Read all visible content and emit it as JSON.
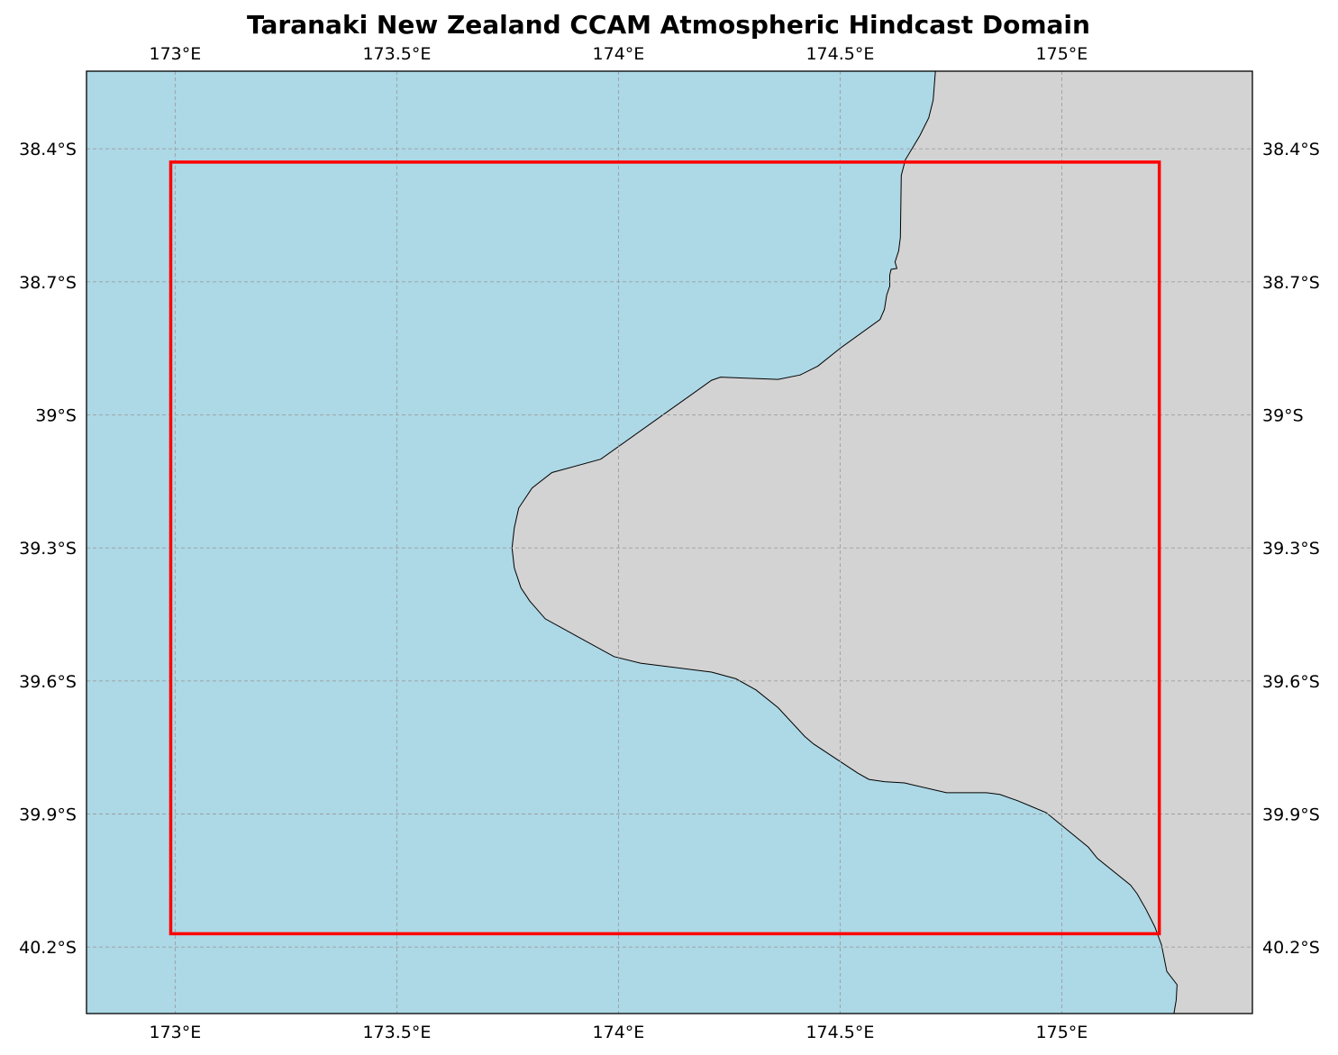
{
  "title": "Taranaki New Zealand CCAM Atmospheric Hindcast Domain",
  "map": {
    "projection": "PlateCarree",
    "extent": {
      "lon": [
        172.8,
        175.43
      ],
      "lat": [
        -40.35,
        -38.225
      ]
    },
    "colors": {
      "ocean": "#add8e6",
      "land": "#d3d3d3",
      "coastline": "#000000",
      "gridlines": "#999999",
      "domain_box": "#ff0000"
    },
    "gridlines": true,
    "lon_ticks": [
      {
        "value": 173.0,
        "label": "173°E"
      },
      {
        "value": 173.5,
        "label": "173.5°E"
      },
      {
        "value": 174.0,
        "label": "174°E"
      },
      {
        "value": 174.5,
        "label": "174.5°E"
      },
      {
        "value": 175.0,
        "label": "175°E"
      }
    ],
    "lat_ticks": [
      {
        "value": -38.4,
        "label": "38.4°S"
      },
      {
        "value": -38.7,
        "label": "38.7°S"
      },
      {
        "value": -39.0,
        "label": "39°S"
      },
      {
        "value": -39.3,
        "label": "39.3°S"
      },
      {
        "value": -39.6,
        "label": "39.6°S"
      },
      {
        "value": -39.9,
        "label": "39.9°S"
      },
      {
        "value": -40.2,
        "label": "40.2°S"
      }
    ],
    "domain_box": {
      "lon": [
        172.99,
        175.22
      ],
      "lat": [
        -40.17,
        -38.43
      ]
    },
    "coastline": [
      [
        174.715,
        -38.225
      ],
      [
        174.71,
        -38.29
      ],
      [
        174.7,
        -38.33
      ],
      [
        174.68,
        -38.37
      ],
      [
        174.647,
        -38.425
      ],
      [
        174.638,
        -38.46
      ],
      [
        174.636,
        -38.6
      ],
      [
        174.632,
        -38.63
      ],
      [
        174.624,
        -38.655
      ],
      [
        174.628,
        -38.67
      ],
      [
        174.615,
        -38.672
      ],
      [
        174.612,
        -38.685
      ],
      [
        174.612,
        -38.71
      ],
      [
        174.605,
        -38.73
      ],
      [
        174.6,
        -38.762
      ],
      [
        174.59,
        -38.785
      ],
      [
        174.5,
        -38.85
      ],
      [
        174.45,
        -38.89
      ],
      [
        174.41,
        -38.91
      ],
      [
        174.36,
        -38.92
      ],
      [
        174.23,
        -38.915
      ],
      [
        174.21,
        -38.922
      ],
      [
        173.96,
        -39.1
      ],
      [
        173.85,
        -39.13
      ],
      [
        173.805,
        -39.165
      ],
      [
        173.775,
        -39.21
      ],
      [
        173.765,
        -39.255
      ],
      [
        173.76,
        -39.3
      ],
      [
        173.765,
        -39.345
      ],
      [
        173.78,
        -39.39
      ],
      [
        173.8,
        -39.42
      ],
      [
        173.835,
        -39.46
      ],
      [
        173.99,
        -39.545
      ],
      [
        174.05,
        -39.56
      ],
      [
        174.21,
        -39.58
      ],
      [
        174.265,
        -39.595
      ],
      [
        174.31,
        -39.62
      ],
      [
        174.36,
        -39.66
      ],
      [
        174.42,
        -39.725
      ],
      [
        174.44,
        -39.742
      ],
      [
        174.54,
        -39.808
      ],
      [
        174.565,
        -39.822
      ],
      [
        174.6,
        -39.827
      ],
      [
        174.645,
        -39.83
      ],
      [
        174.74,
        -39.852
      ],
      [
        174.83,
        -39.852
      ],
      [
        174.86,
        -39.856
      ],
      [
        174.9,
        -39.87
      ],
      [
        174.965,
        -39.897
      ],
      [
        175.06,
        -39.975
      ],
      [
        175.08,
        -40.0
      ],
      [
        175.155,
        -40.06
      ],
      [
        175.17,
        -40.08
      ],
      [
        175.19,
        -40.115
      ],
      [
        175.21,
        -40.155
      ],
      [
        175.225,
        -40.195
      ],
      [
        175.237,
        -40.255
      ],
      [
        175.26,
        -40.285
      ],
      [
        175.258,
        -40.32
      ],
      [
        175.253,
        -40.35
      ]
    ]
  }
}
